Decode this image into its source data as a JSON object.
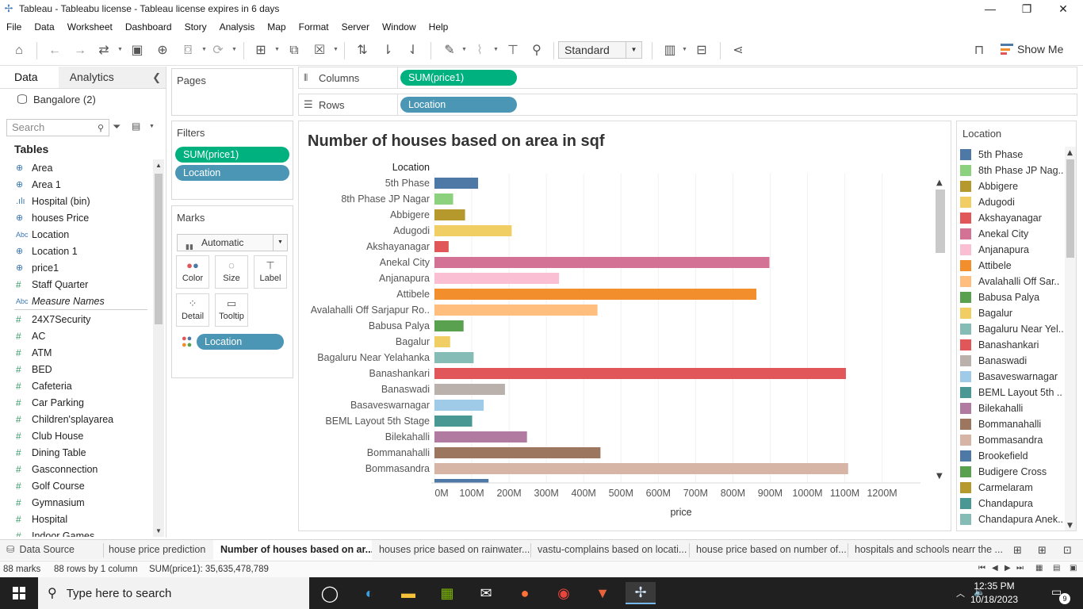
{
  "window": {
    "title": "Tableau - Tableabu license - Tableau license expires in 6 days",
    "minimize": "—",
    "maximize": "❐",
    "close": "✕"
  },
  "menu": [
    "File",
    "Data",
    "Worksheet",
    "Dashboard",
    "Story",
    "Analysis",
    "Map",
    "Format",
    "Server",
    "Window",
    "Help"
  ],
  "toolbar": {
    "fit": "Standard",
    "show_me": "Show Me"
  },
  "left_pane": {
    "tab_data": "Data",
    "tab_analytics": "Analytics",
    "datasource": "Bangalore (2)",
    "search_placeholder": "Search",
    "tables_heading": "Tables",
    "fields": [
      {
        "icon": "globe",
        "name": "Area",
        "italic": false
      },
      {
        "icon": "globe",
        "name": "Area 1",
        "italic": false
      },
      {
        "icon": "bin",
        "name": "Hospital (bin)",
        "italic": false
      },
      {
        "icon": "globe",
        "name": "houses Price",
        "italic": false
      },
      {
        "icon": "abc",
        "name": "Location",
        "italic": false
      },
      {
        "icon": "globe",
        "name": "Location 1",
        "italic": false
      },
      {
        "icon": "globe",
        "name": "price1",
        "italic": false
      },
      {
        "icon": "hash",
        "name": "Staff Quarter",
        "italic": false
      },
      {
        "icon": "abc",
        "name": "Measure Names",
        "italic": true
      },
      {
        "icon": "hash",
        "name": "24X7Security",
        "italic": false
      },
      {
        "icon": "hash",
        "name": "AC",
        "italic": false
      },
      {
        "icon": "hash",
        "name": "ATM",
        "italic": false
      },
      {
        "icon": "hash",
        "name": "BED",
        "italic": false
      },
      {
        "icon": "hash",
        "name": "Cafeteria",
        "italic": false
      },
      {
        "icon": "hash",
        "name": "Car Parking",
        "italic": false
      },
      {
        "icon": "hash",
        "name": "Children'splayarea",
        "italic": false
      },
      {
        "icon": "hash",
        "name": "Club House",
        "italic": false
      },
      {
        "icon": "hash",
        "name": "Dining Table",
        "italic": false
      },
      {
        "icon": "hash",
        "name": "Gasconnection",
        "italic": false
      },
      {
        "icon": "hash",
        "name": "Golf Course",
        "italic": false
      },
      {
        "icon": "hash",
        "name": "Gymnasium",
        "italic": false
      },
      {
        "icon": "hash",
        "name": "Hospital",
        "italic": false
      },
      {
        "icon": "hash",
        "name": "Indoor Games",
        "italic": false
      }
    ]
  },
  "cards": {
    "pages": "Pages",
    "filters": "Filters",
    "filter_pills": [
      "SUM(price1)",
      "Location"
    ],
    "marks": "Marks",
    "mark_type": "Automatic",
    "mark_buttons": [
      "Color",
      "Size",
      "Label",
      "Detail",
      "Tooltip"
    ],
    "color_pill": "Location"
  },
  "shelves": {
    "columns_label": "Columns",
    "columns_pill": "SUM(price1)",
    "rows_label": "Rows",
    "rows_pill": "Location"
  },
  "chart_data": {
    "type": "bar",
    "orientation": "horizontal",
    "title": "Number of houses based on area in sqf",
    "row_header": "Location",
    "xlabel": "price",
    "xlim": [
      0,
      1300
    ],
    "x_ticks": [
      "0M",
      "100M",
      "200M",
      "300M",
      "400M",
      "500M",
      "600M",
      "700M",
      "800M",
      "900M",
      "1000M",
      "1100M",
      "1200M"
    ],
    "x_unit": "M",
    "grid": true,
    "categories": [
      "5th Phase",
      "8th Phase JP Nagar",
      "Abbigere",
      "Adugodi",
      "Akshayanagar",
      "Anekal City",
      "Anjanapura",
      "Attibele",
      "Avalahalli Off Sarjapur Ro..",
      "Babusa Palya",
      "Bagalur",
      "Bagaluru Near Yelahanka",
      "Banashankari",
      "Banaswadi",
      "Basaveswarnagar",
      "BEML Layout 5th Stage",
      "Bilekahalli",
      "Bommanahalli",
      "Bommasandra"
    ],
    "values": [
      117,
      50,
      82,
      207,
      38,
      898,
      334,
      863,
      437,
      78,
      42,
      105,
      1103,
      189,
      132,
      101,
      248,
      445,
      1109
    ],
    "colors": [
      "#4e79a7",
      "#8cd17d",
      "#b6992d",
      "#f1ce63",
      "#e15759",
      "#d37295",
      "#fabfd2",
      "#f28e2b",
      "#ffbe7d",
      "#59a14f",
      "#f1ce63",
      "#86bcb6",
      "#e15759",
      "#bab0ac",
      "#a0cbe8",
      "#499894",
      "#b07aa1",
      "#9d7660",
      "#d7b5a6"
    ]
  },
  "legend": {
    "title": "Location",
    "items": [
      {
        "name": "5th Phase",
        "color": "#4e79a7"
      },
      {
        "name": "8th Phase JP Nag..",
        "color": "#8cd17d"
      },
      {
        "name": "Abbigere",
        "color": "#b6992d"
      },
      {
        "name": "Adugodi",
        "color": "#f1ce63"
      },
      {
        "name": "Akshayanagar",
        "color": "#e15759"
      },
      {
        "name": "Anekal City",
        "color": "#d37295"
      },
      {
        "name": "Anjanapura",
        "color": "#fabfd2"
      },
      {
        "name": "Attibele",
        "color": "#f28e2b"
      },
      {
        "name": "Avalahalli Off Sar..",
        "color": "#ffbe7d"
      },
      {
        "name": "Babusa Palya",
        "color": "#59a14f"
      },
      {
        "name": "Bagalur",
        "color": "#f1ce63"
      },
      {
        "name": "Bagaluru Near Yel..",
        "color": "#86bcb6"
      },
      {
        "name": "Banashankari",
        "color": "#e15759"
      },
      {
        "name": "Banaswadi",
        "color": "#bab0ac"
      },
      {
        "name": "Basaveswarnagar",
        "color": "#a0cbe8"
      },
      {
        "name": "BEML Layout 5th ..",
        "color": "#499894"
      },
      {
        "name": "Bilekahalli",
        "color": "#b07aa1"
      },
      {
        "name": "Bommanahalli",
        "color": "#9d7660"
      },
      {
        "name": "Bommasandra",
        "color": "#d7b5a6"
      },
      {
        "name": "Brookefield",
        "color": "#4e79a7"
      },
      {
        "name": "Budigere Cross",
        "color": "#59a14f"
      },
      {
        "name": "Carmelaram",
        "color": "#b6992d"
      },
      {
        "name": "Chandapura",
        "color": "#499894"
      },
      {
        "name": "Chandapura Anek..",
        "color": "#86bcb6"
      }
    ]
  },
  "sheets": {
    "data_source": "Data Source",
    "tabs": [
      "house price prediction",
      "Number of houses based on ar...",
      "houses price based on rainwater...",
      "vastu-complains based on locati...",
      "house price based on number of...",
      "hospitals and schools nearr the ..."
    ],
    "active_index": 1
  },
  "status": {
    "marks": "88 marks",
    "rows": "88 rows by 1 column",
    "sum": "SUM(price1): 35,635,478,789"
  },
  "taskbar": {
    "search_placeholder": "Type here to search",
    "time": "12:35 PM",
    "date": "10/18/2023",
    "notifications": "9"
  }
}
